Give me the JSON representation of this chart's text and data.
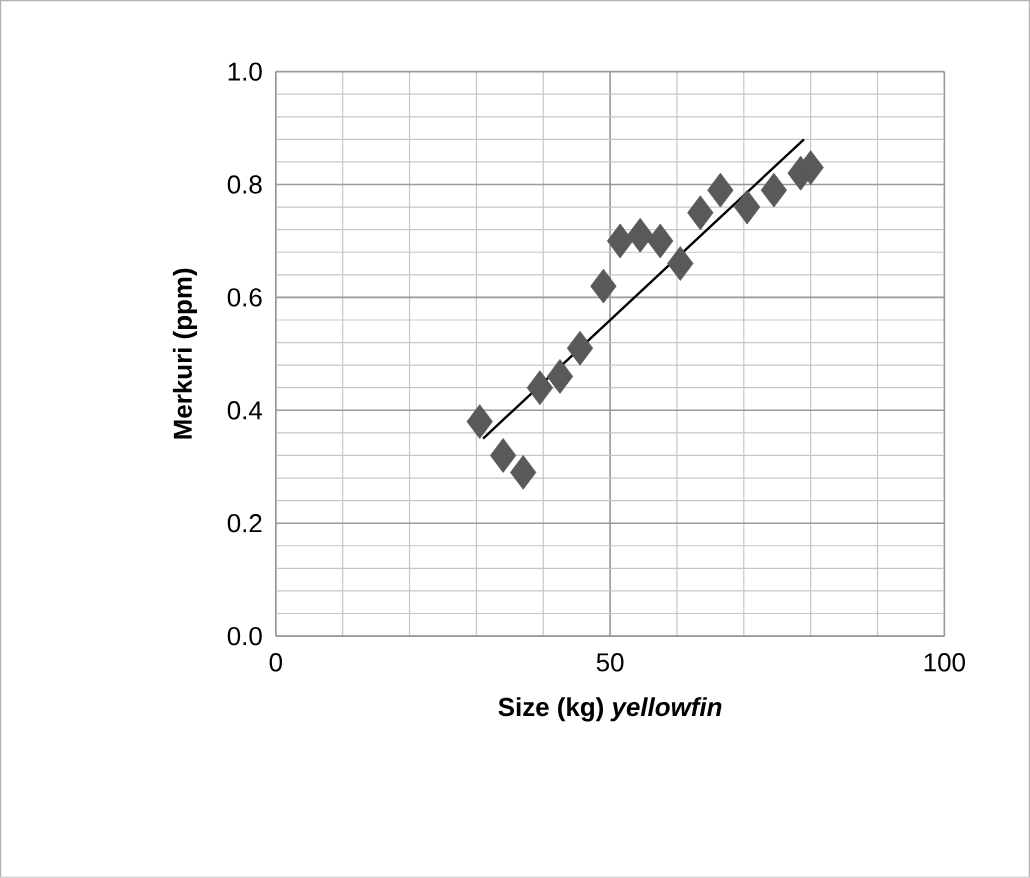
{
  "chart_data": {
    "type": "scatter",
    "xlabel": "Size (kg) *yellowfin*",
    "ylabel": "Merkuri (ppm)",
    "xlim": [
      0,
      100
    ],
    "xticks": [
      0,
      50,
      100
    ],
    "ylim": [
      0,
      1
    ],
    "yticks": [
      {
        "value": 0,
        "label": "0.0"
      },
      {
        "value": 0.2,
        "label": "0.2"
      },
      {
        "value": 0.4,
        "label": "0.4"
      },
      {
        "value": 0.6,
        "label": "0.6"
      },
      {
        "value": 0.8,
        "label": "0.8"
      },
      {
        "value": 1,
        "label": "1.0"
      }
    ],
    "grid": true,
    "marker": "diamond",
    "series": [
      {
        "color": "#595959",
        "x": [
          30.5,
          34,
          37,
          39.5,
          42.5,
          45.5,
          49,
          51.5,
          54.5,
          57.5,
          60.5,
          63.5,
          66.5,
          70.5,
          74.5,
          78.5,
          80
        ],
        "values": [
          0.38,
          0.32,
          0.29,
          0.44,
          0.46,
          0.51,
          0.62,
          0.7,
          0.71,
          0.7,
          0.66,
          0.75,
          0.79,
          0.76,
          0.79,
          0.82,
          0.83
        ]
      },
      {
        "type": "line",
        "marker": "none",
        "color": "#000000",
        "x": [
          31,
          79
        ],
        "values": [
          0.35,
          0.88
        ]
      }
    ]
  }
}
